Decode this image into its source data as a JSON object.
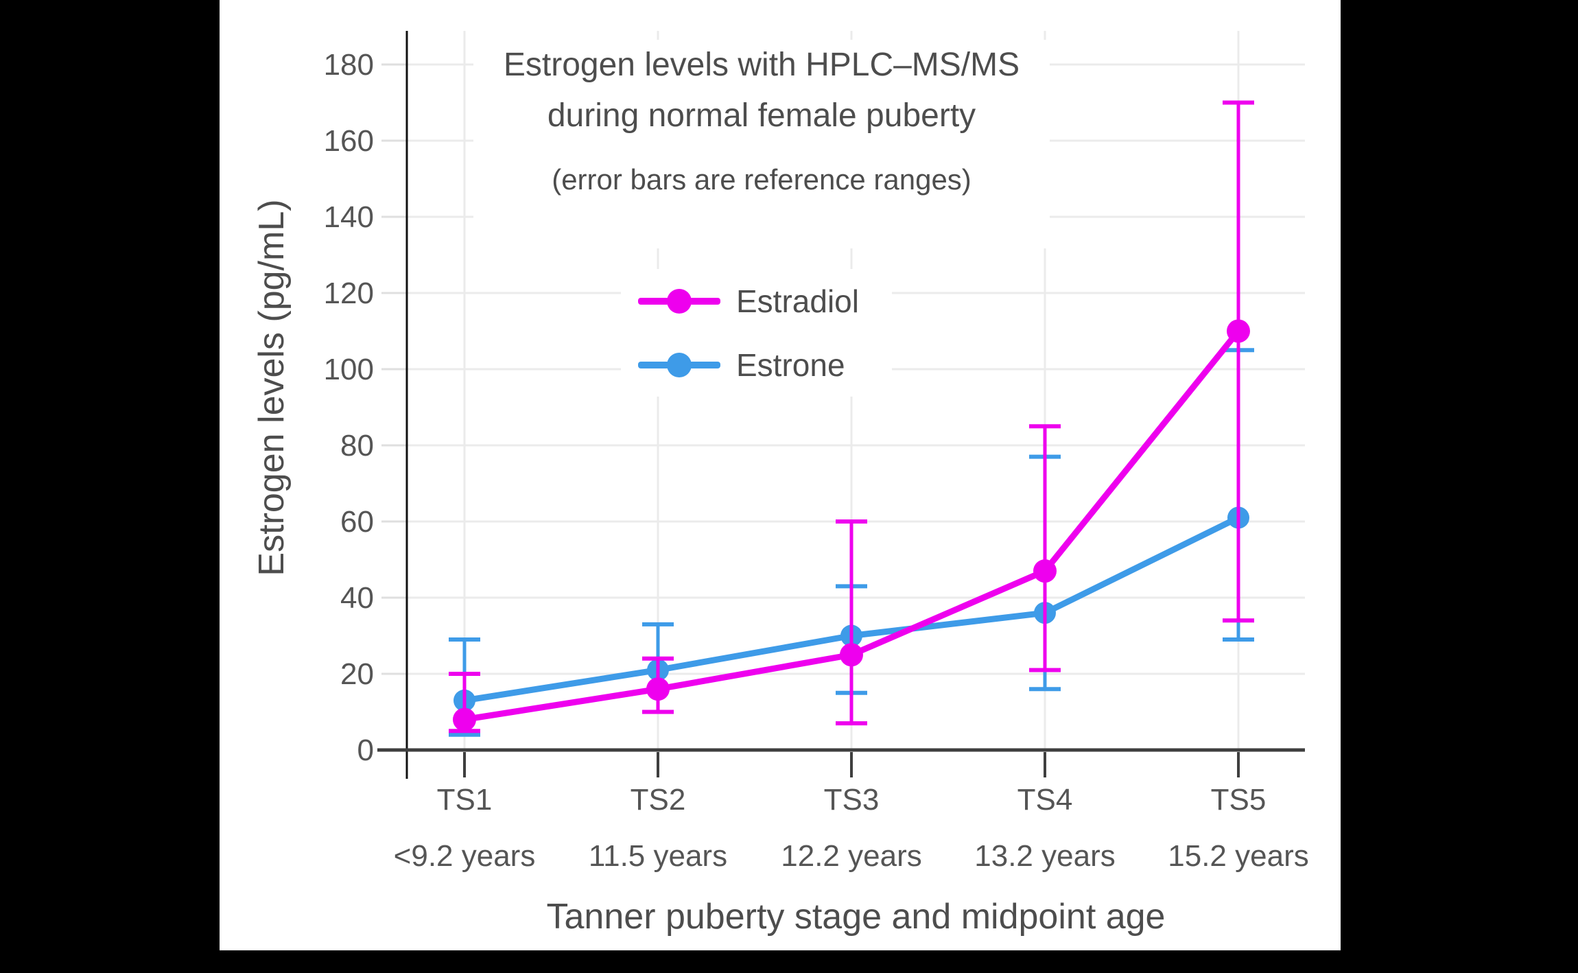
{
  "colors": {
    "page_background": "#000000",
    "canvas_background": "#FFFFFF",
    "gridline": "#EBEBEB",
    "x_axis_line": "#3F3F3F",
    "y_axis_line": "#111111",
    "tick_label": "#555555",
    "text": "#4D4D4D",
    "estradiol": "#EE00EE",
    "estrone": "#3E9BE8"
  },
  "chart_data": {
    "type": "line",
    "title": "Estrogen levels with HPLC–MS/MS during normal female puberty",
    "title_lines": [
      "Estrogen levels with HPLC–MS/MS",
      "during normal female puberty"
    ],
    "subtitle": "(error bars are reference ranges)",
    "xlabel": "Tanner puberty stage and midpoint age",
    "ylabel": "Estrogen levels (pg/mL)",
    "categories": [
      "TS1",
      "TS2",
      "TS3",
      "TS4",
      "TS5"
    ],
    "category_sublabels": [
      "<9.2 years",
      "11.5 years",
      "12.2 years",
      "13.2 years",
      "15.2 years"
    ],
    "yticks": [
      0,
      20,
      40,
      60,
      80,
      100,
      120,
      140,
      160,
      180
    ],
    "ylim": [
      0,
      190
    ],
    "grid": true,
    "legend_position": "inside-upper-center",
    "error_bar_meaning": "reference ranges",
    "series": [
      {
        "name": "Estradiol",
        "color": "#EE00EE",
        "values": [
          8,
          16,
          25,
          47,
          110
        ],
        "error_low": [
          5,
          10,
          7,
          21,
          34
        ],
        "error_high": [
          20,
          24,
          60,
          85,
          170
        ]
      },
      {
        "name": "Estrone",
        "color": "#3E9BE8",
        "values": [
          13,
          21,
          30,
          36,
          61
        ],
        "error_low": [
          4,
          10,
          15,
          16,
          29
        ],
        "error_high": [
          29,
          33,
          43,
          77,
          105
        ]
      }
    ]
  }
}
